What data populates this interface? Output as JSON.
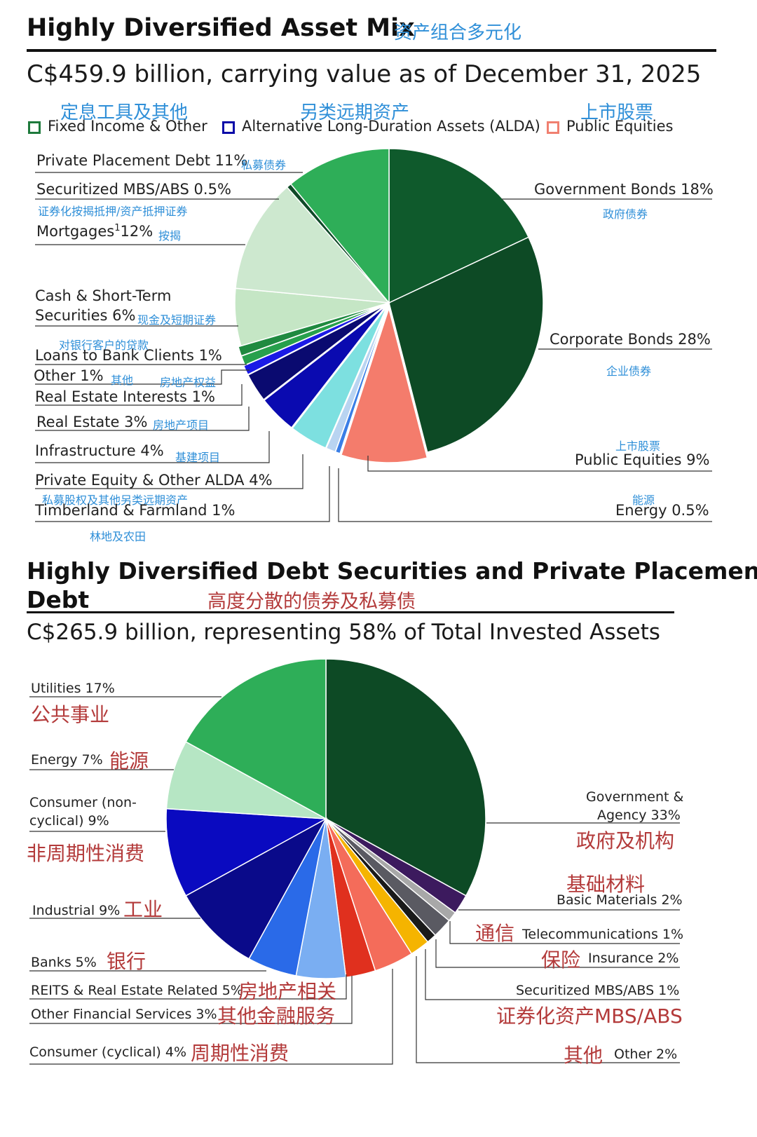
{
  "section1": {
    "title": "Highly Diversified Asset Mix",
    "title_cn": "资产组合多元化",
    "subtitle": "C$459.9 billion, carrying value as of December 31, 2025",
    "legend": [
      {
        "label": "Fixed Income & Other",
        "label_cn": "定息工具及其他",
        "color": "#1e7a3c"
      },
      {
        "label": "Alternative Long-Duration Assets (ALDA)",
        "label_cn": "另类远期资产",
        "color": "#0a0aa8"
      },
      {
        "label": "Public Equities",
        "label_cn": "上市股票",
        "color": "#f08070"
      }
    ]
  },
  "chart_data": [
    {
      "type": "pie",
      "title": "Highly Diversified Asset Mix",
      "total": "C$459.9 billion",
      "slices": [
        {
          "label": "Government Bonds",
          "value": 18,
          "pct": "18%",
          "cn": "政府债券",
          "group": "Fixed Income & Other",
          "color": "#0f5a2c"
        },
        {
          "label": "Corporate Bonds",
          "value": 28,
          "pct": "28%",
          "cn": "企业债券",
          "group": "Fixed Income & Other",
          "color": "#0d4a25"
        },
        {
          "label": "Public Equities",
          "value": 9,
          "pct": "9%",
          "cn": "上市股票",
          "group": "Public Equities",
          "color": "#f47c6c"
        },
        {
          "label": "Energy",
          "value": 0.5,
          "pct": "0.5%",
          "cn": "能源",
          "group": "ALDA",
          "color": "#3a7ee6"
        },
        {
          "label": "Timberland & Farmland",
          "value": 1,
          "pct": "1%",
          "cn": "林地及农田",
          "group": "ALDA",
          "color": "#b9d4f1"
        },
        {
          "label": "Private Equity & Other ALDA",
          "value": 4,
          "pct": "4%",
          "cn": "私募股权及其他另类远期资产",
          "group": "ALDA",
          "color": "#7de0e0"
        },
        {
          "label": "Infrastructure",
          "value": 4,
          "pct": "4%",
          "cn": "基建项目",
          "group": "ALDA",
          "color": "#0a0ab0"
        },
        {
          "label": "Real Estate",
          "value": 3,
          "pct": "3%",
          "cn": "房地产项目",
          "group": "ALDA",
          "color": "#0a0a70"
        },
        {
          "label": "Real Estate Interests",
          "value": 1,
          "pct": "1%",
          "cn": "房地产权益",
          "group": "ALDA",
          "color": "#1a1ae6"
        },
        {
          "label": "Other",
          "value": 1,
          "pct": "1%",
          "cn": "其他",
          "group": "Fixed Income & Other",
          "color": "#27a04c"
        },
        {
          "label": "Loans to Bank Clients",
          "value": 1,
          "pct": "1%",
          "cn": "对银行客户的贷款",
          "group": "Fixed Income & Other",
          "color": "#1f8a40"
        },
        {
          "label": "Cash & Short-Term Securities",
          "value": 6,
          "pct": "6%",
          "cn": "现金及短期证券",
          "group": "Fixed Income & Other",
          "color": "#c5e6c5"
        },
        {
          "label": "Mortgages",
          "value": 12,
          "pct": "12%",
          "cn": "按揭",
          "group": "Fixed Income & Other",
          "color": "#cde8cf"
        },
        {
          "label": "Securitized MBS/ABS",
          "value": 0.5,
          "pct": "0.5%",
          "cn": "证券化按揭抵押/资产抵押证券",
          "group": "Fixed Income & Other",
          "color": "#0f4a28"
        },
        {
          "label": "Private Placement Debt",
          "value": 11,
          "pct": "11%",
          "cn": "私募债券",
          "group": "Fixed Income & Other",
          "color": "#2eae58"
        }
      ]
    },
    {
      "type": "pie",
      "title": "Highly Diversified Debt Securities and Private Placement Debt",
      "total": "C$265.9 billion",
      "slices": [
        {
          "label": "Government & Agency",
          "value": 33,
          "pct": "33%",
          "cn": "政府及机构",
          "color": "#0d4a25"
        },
        {
          "label": "Basic Materials",
          "value": 2,
          "pct": "2%",
          "cn": "基础材料",
          "color": "#3c1a5e"
        },
        {
          "label": "Telecommunications",
          "value": 1,
          "pct": "1%",
          "cn": "通信",
          "color": "#a8a8a8"
        },
        {
          "label": "Insurance",
          "value": 2,
          "pct": "2%",
          "cn": "保险",
          "color": "#5a5a62"
        },
        {
          "label": "Securitized MBS/ABS",
          "value": 1,
          "pct": "1%",
          "cn": "证券化资产MBS/ABS",
          "color": "#1a1a1a"
        },
        {
          "label": "Other",
          "value": 2,
          "pct": "2%",
          "cn": "其他",
          "color": "#f5b400"
        },
        {
          "label": "Consumer (cyclical)",
          "value": 4,
          "pct": "4%",
          "cn": "周期性消费",
          "color": "#f46c5a"
        },
        {
          "label": "Other Financial Services",
          "value": 3,
          "pct": "3%",
          "cn": "其他金融服务",
          "color": "#e0301e"
        },
        {
          "label": "REITS & Real Estate Related",
          "value": 5,
          "pct": "5%",
          "cn": "房地产相关",
          "color": "#7aaef2"
        },
        {
          "label": "Banks",
          "value": 5,
          "pct": "5%",
          "cn": "银行",
          "color": "#2a6ae8"
        },
        {
          "label": "Industrial",
          "value": 9,
          "pct": "9%",
          "cn": "工业",
          "color": "#0a0a8a"
        },
        {
          "label": "Consumer (non-cyclical)",
          "value": 9,
          "pct": "9%",
          "cn": "非周期性消费",
          "color": "#0a0ac0"
        },
        {
          "label": "Energy",
          "value": 7,
          "pct": "7%",
          "cn": "能源",
          "color": "#b6e6c4"
        },
        {
          "label": "Utilities",
          "value": 17,
          "pct": "17%",
          "cn": "公共事业",
          "color": "#2eae58"
        }
      ]
    }
  ],
  "section2": {
    "title_line1": "Highly Diversified Debt Securities and Private Placement",
    "title_line2": "Debt",
    "title_cn": "高度分散的债券及私募债",
    "subtitle": "C$265.9 billion, representing 58% of Total Invested Assets"
  },
  "labels1": {
    "ppd": "Private Placement Debt 11%",
    "ppd_cn": "私募债券",
    "smbs": "Securitized MBS/ABS 0.5%",
    "smbs_cn": "证券化按揭抵押/资产抵押证券",
    "mort": "Mortgages",
    "mort_sup": "1",
    "mort_pct": "12%",
    "mort_cn": "按揭",
    "cash1": "Cash & Short-Term",
    "cash2": "Securities 6%",
    "cash_cn": "现金及短期证券",
    "loans_cn": "对银行客户的贷款",
    "loans": "Loans to Bank Clients 1%",
    "other": "Other 1%",
    "other_cn": "其他",
    "rei_cn": "房地产权益",
    "rei": "Real Estate Interests 1%",
    "re": "Real Estate 3%",
    "re_cn": "房地产项目",
    "infra": "Infrastructure 4%",
    "infra_cn": "基建项目",
    "pe": "Private Equity & Other ALDA 4%",
    "pe_cn": "私募股权及其他另类远期资产",
    "tf": "Timberland & Farmland 1%",
    "tf_cn": "林地及农田",
    "gov": "Government Bonds 18%",
    "gov_cn": "政府债券",
    "corp": "Corporate Bonds 28%",
    "corp_cn": "企业债券",
    "pub_cn": "上市股票",
    "pub": "Public Equities 9%",
    "energy_cn": "能源",
    "energy": "Energy 0.5%"
  },
  "labels2": {
    "util": "Utilities 17%",
    "util_cn": "公共事业",
    "energy": "Energy 7%",
    "energy_cn": "能源",
    "cons1": "Consumer (non-",
    "cons2": "cyclical) 9%",
    "cons_cn": "非周期性消费",
    "ind": "Industrial 9%",
    "ind_cn": "工业",
    "banks": "Banks 5%",
    "banks_cn": "银行",
    "reits": "REITS & Real Estate Related 5%",
    "reits_cn": "房地产相关",
    "ofs": "Other Financial Services 3%",
    "ofs_cn": "其他金融服务",
    "cc": "Consumer (cyclical) 4%",
    "cc_cn": "周期性消费",
    "gov1": "Government &",
    "gov2": "Agency 33%",
    "gov_cn": "政府及机构",
    "bm_cn": "基础材料",
    "bm": "Basic Materials 2%",
    "tel_cn": "通信",
    "tel": "Telecommunications 1%",
    "ins_cn": "保险",
    "ins": "Insurance 2%",
    "smbs": "Securitized MBS/ABS 1%",
    "smbs_cn": "证券化资产MBS/ABS",
    "oth_cn": "其他",
    "oth": "Other 2%"
  }
}
